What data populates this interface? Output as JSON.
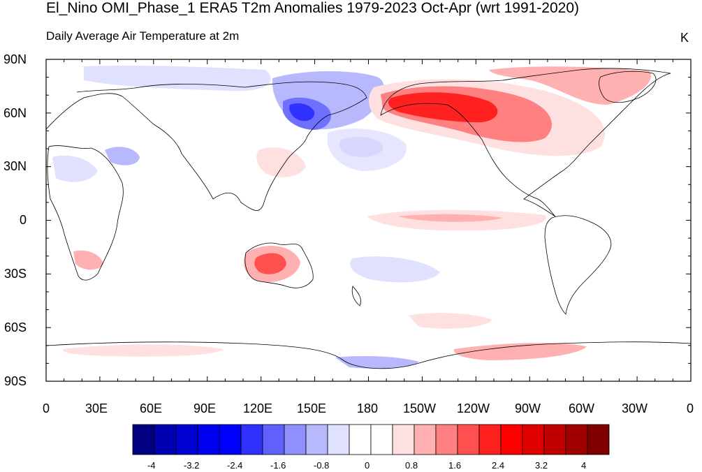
{
  "title": "El_Nino OMI_Phase_1 ERA5 T2m Anomalies 1979-2023 Oct-Apr (wrt 1991-2020)",
  "subtitle": "Daily Average Air Temperature at 2m",
  "units": "K",
  "lat_labels": [
    "90N",
    "60N",
    "30N",
    "0",
    "30S",
    "60S",
    "90S"
  ],
  "lon_labels": [
    "0",
    "30E",
    "60E",
    "90E",
    "120E",
    "150E",
    "180",
    "150W",
    "120W",
    "90W",
    "60W",
    "30W",
    "0"
  ],
  "colorbar": {
    "colors": [
      "#000080",
      "#0000b0",
      "#0000d0",
      "#0000f0",
      "#0000ff",
      "#3030ff",
      "#6060ff",
      "#9090ff",
      "#b8b8ff",
      "#e0e0ff",
      "#ffffff",
      "#ffffff",
      "#ffe0e0",
      "#ffb0b0",
      "#ff8080",
      "#ff5050",
      "#ff2020",
      "#ff0000",
      "#e00000",
      "#c00000",
      "#a00000",
      "#800000"
    ],
    "tick_labels": [
      "-4",
      "-3.2",
      "-2.4",
      "-1.6",
      "-0.8",
      "0",
      "0.8",
      "1.6",
      "2.4",
      "3.2",
      "4"
    ]
  }
}
